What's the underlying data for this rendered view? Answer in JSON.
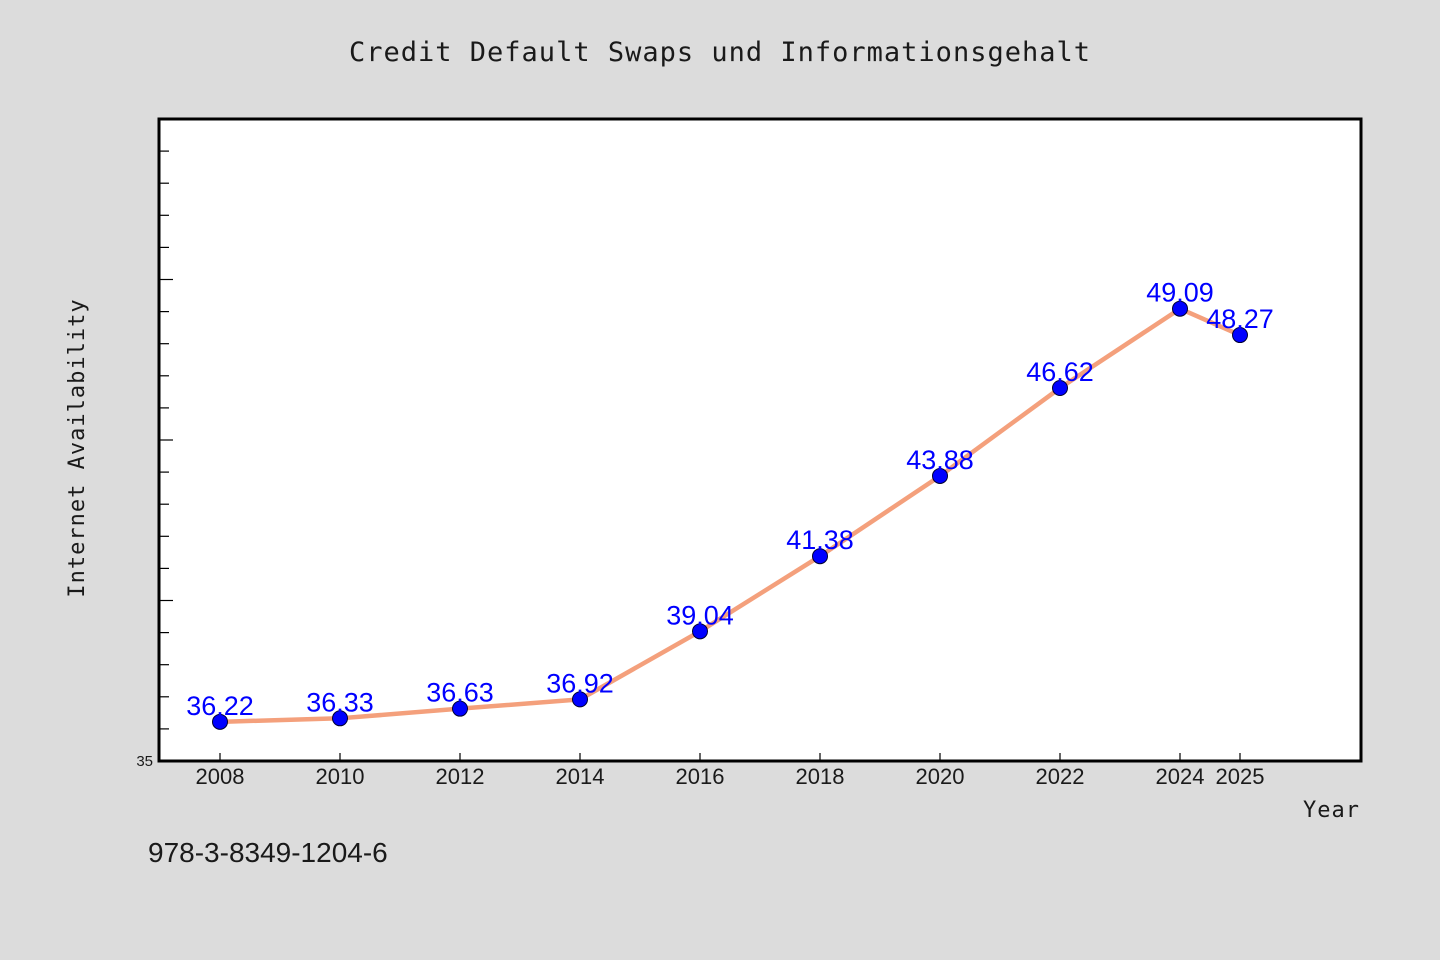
{
  "chart_data": {
    "type": "line",
    "title": "Credit Default Swaps und Informationsgehalt",
    "xlabel": "Year",
    "ylabel": "Internet Availability",
    "x": [
      2008,
      2010,
      2012,
      2014,
      2016,
      2018,
      2020,
      2022,
      2024,
      2025
    ],
    "x_tick_labels": [
      "2008",
      "2010",
      "2012",
      "2014",
      "2016",
      "2018",
      "2020",
      "2022",
      "2024",
      "2025"
    ],
    "series": [
      {
        "values": [
          36.22,
          36.33,
          36.63,
          36.92,
          39.04,
          41.38,
          43.88,
          46.62,
          49.09,
          48.27
        ],
        "labels": [
          "36.22",
          "36.33",
          "36.63",
          "36.92",
          "39.04",
          "41.38",
          "43.88",
          "46.62",
          "49.09",
          "48.27"
        ],
        "line_color": "#f4a07c",
        "marker_color": "#0000ff"
      }
    ],
    "y_min_label": "35",
    "ylim": [
      35,
      55
    ],
    "grid": false,
    "legend": "none"
  },
  "footer": {
    "isbn": "978-3-8349-1204-6"
  },
  "colors": {
    "background": "#dcdcdc",
    "plot_background": "#ffffff",
    "line": "#f4a07c",
    "marker": "#0000ff",
    "data_label": "#0000ff"
  }
}
